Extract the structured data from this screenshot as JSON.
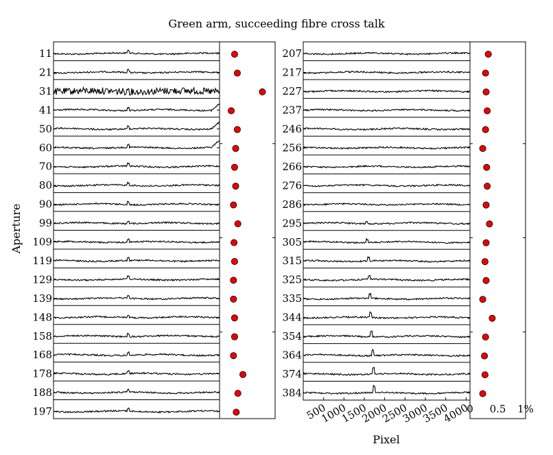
{
  "title": "Green arm, succeeding fibre cross talk",
  "ylabel": "Aperture",
  "xlabel": "Pixel",
  "chart_data": {
    "type": "scatter",
    "title": "Green arm, succeeding fibre cross talk",
    "xlabel": "Pixel",
    "ylabel": "Aperture",
    "pixel_ticks": [
      "500",
      "1000",
      "1500",
      "2000",
      "2500",
      "3000",
      "3500",
      "4000"
    ],
    "pixel_range": [
      0,
      4096
    ],
    "crosstalk_ticks": [
      "0",
      "0.5",
      "1%"
    ],
    "crosstalk_range": [
      0,
      1
    ],
    "marker_color": "#ee0000",
    "left_column": {
      "apertures": [
        "11",
        "21",
        "31",
        "41",
        "50",
        "60",
        "70",
        "80",
        "90",
        "99",
        "109",
        "119",
        "129",
        "139",
        "148",
        "158",
        "168",
        "178",
        "188",
        "197"
      ],
      "crosstalk_percent": [
        0.27,
        0.32,
        0.77,
        0.21,
        0.32,
        0.29,
        0.27,
        0.29,
        0.25,
        0.33,
        0.26,
        0.27,
        0.25,
        0.25,
        0.27,
        0.27,
        0.25,
        0.42,
        0.33,
        0.3
      ]
    },
    "right_column": {
      "apertures": [
        "207",
        "217",
        "227",
        "237",
        "246",
        "256",
        "266",
        "276",
        "286",
        "295",
        "305",
        "315",
        "325",
        "335",
        "344",
        "354",
        "364",
        "374",
        "384"
      ],
      "crosstalk_percent": [
        0.33,
        0.28,
        0.29,
        0.31,
        0.28,
        0.23,
        0.3,
        0.31,
        0.29,
        0.35,
        0.29,
        0.27,
        0.29,
        0.23,
        0.4,
        0.28,
        0.26,
        0.27,
        0.23
      ]
    }
  }
}
